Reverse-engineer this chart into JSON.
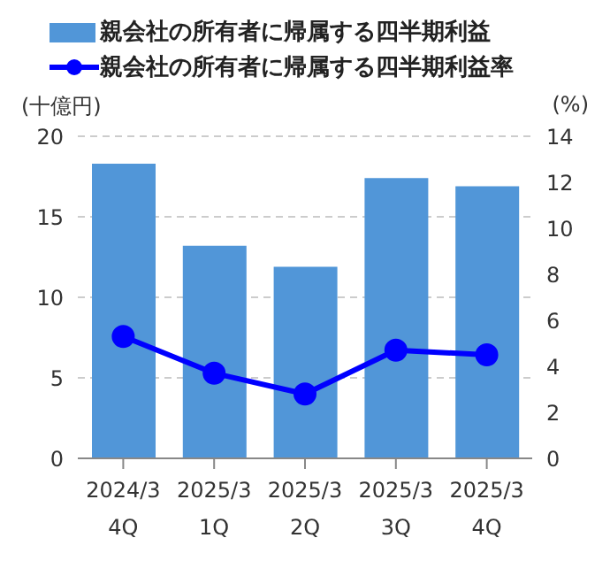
{
  "chart_data": {
    "type": "bar",
    "categories": [
      "2024/3\n4Q",
      "2025/3\n1Q",
      "2025/3\n2Q",
      "2025/3\n3Q",
      "2025/3\n4Q"
    ],
    "ylabel": "(十億円)",
    "y2label": "(%)",
    "series": [
      {
        "name": "親会社の所有者に帰属する四半期利益",
        "color": "#5196d8",
        "values": [
          18.3,
          13.2,
          11.9,
          17.4,
          16.9
        ]
      },
      {
        "name": "親会社の所有者に帰属する四半期利益率",
        "type": "line",
        "axis": "y2",
        "color": "#0000ff",
        "values": [
          5.3,
          3.7,
          2.8,
          4.7,
          4.5
        ]
      }
    ],
    "ylim": [
      0,
      20
    ],
    "yticks": [
      0,
      5,
      10,
      15,
      20
    ],
    "y2lim": [
      0,
      14
    ],
    "y2ticks": [
      0,
      2,
      4,
      6,
      8,
      10,
      12,
      14
    ],
    "grid": "y",
    "legend": "top",
    "marker": "circle"
  }
}
